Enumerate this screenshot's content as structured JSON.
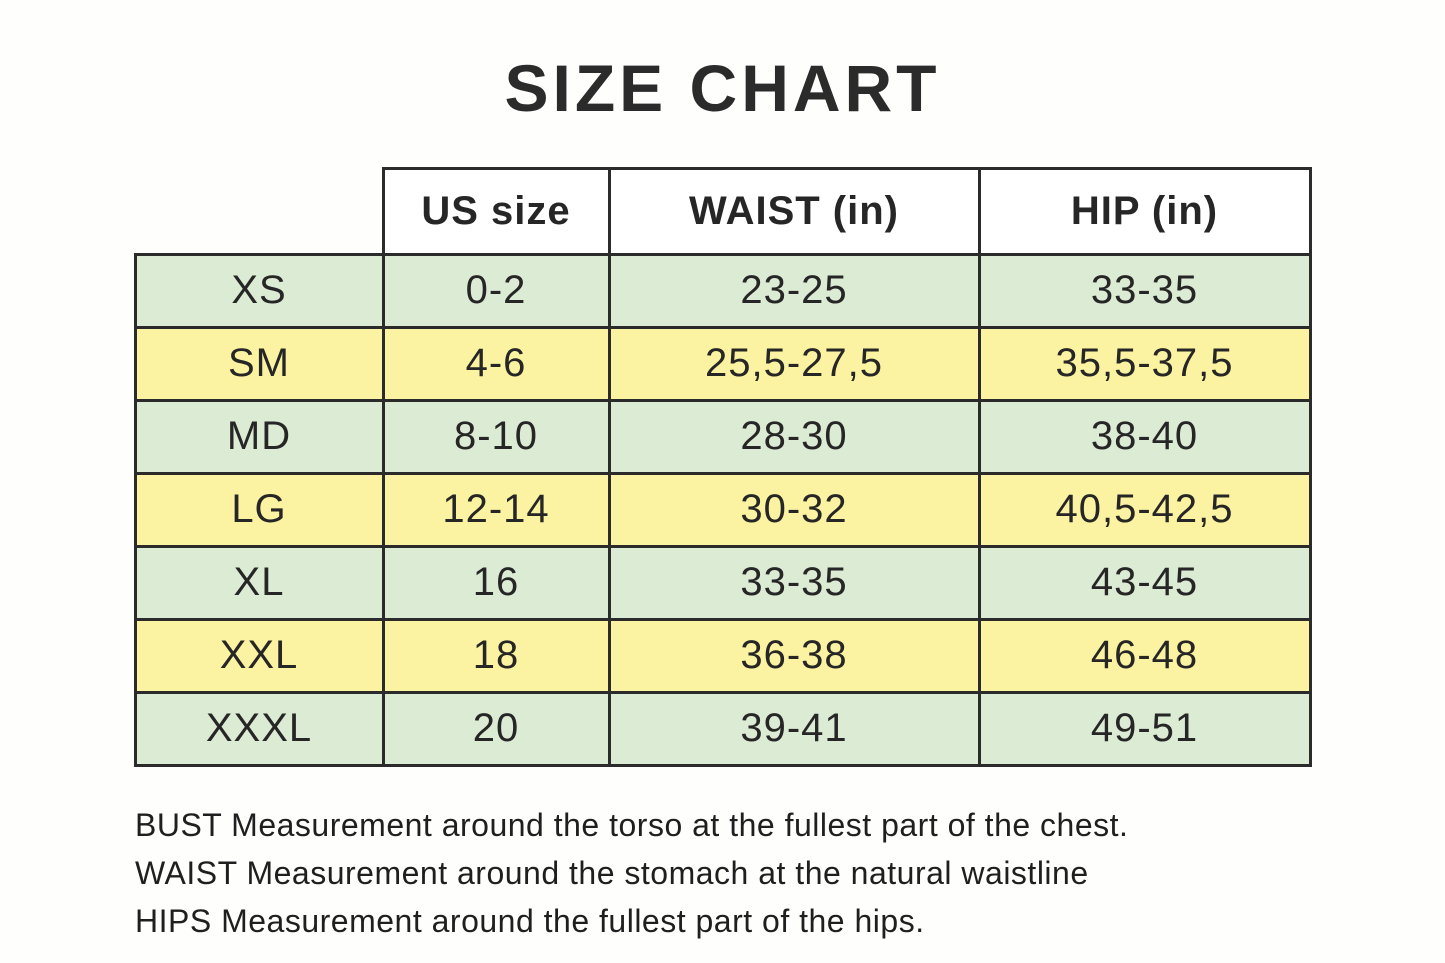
{
  "page": {
    "title": "SIZE CHART"
  },
  "colors": {
    "page_bg": "#fefefd",
    "row_green": "#dcebd3",
    "row_yellow": "#fbf3a1",
    "border": "#2b2b2b",
    "text": "#262626",
    "header_bg": "#ffffff"
  },
  "table": {
    "headers": [
      "US size",
      "WAIST (in)",
      "HIP (in)"
    ],
    "rows": [
      {
        "size": "XS",
        "us_size": "0-2",
        "waist": "23-25",
        "hip": "33-35",
        "shade": "green"
      },
      {
        "size": "SM",
        "us_size": "4-6",
        "waist": "25,5-27,5",
        "hip": "35,5-37,5",
        "shade": "yellow"
      },
      {
        "size": "MD",
        "us_size": "8-10",
        "waist": "28-30",
        "hip": "38-40",
        "shade": "green"
      },
      {
        "size": "LG",
        "us_size": "12-14",
        "waist": "30-32",
        "hip": "40,5-42,5",
        "shade": "yellow"
      },
      {
        "size": "XL",
        "us_size": "16",
        "waist": "33-35",
        "hip": "43-45",
        "shade": "green"
      },
      {
        "size": "XXL",
        "us_size": "18",
        "waist": "36-38",
        "hip": "46-48",
        "shade": "yellow"
      },
      {
        "size": "XXXL",
        "us_size": "20",
        "waist": "39-41",
        "hip": "49-51",
        "shade": "green"
      }
    ]
  },
  "footnotes": {
    "bust": "BUST Measurement around the torso at the fullest part of the chest.",
    "waist": "WAIST Measurement around the stomach at the natural waistline",
    "hips": "HIPS Measurement around the fullest part of the hips."
  },
  "chart_data": {
    "type": "table",
    "title": "SIZE CHART",
    "columns": [
      "",
      "US size",
      "WAIST (in)",
      "HIP (in)"
    ],
    "rows": [
      [
        "XS",
        "0-2",
        "23-25",
        "33-35"
      ],
      [
        "SM",
        "4-6",
        "25,5-27,5",
        "35,5-37,5"
      ],
      [
        "MD",
        "8-10",
        "28-30",
        "38-40"
      ],
      [
        "LG",
        "12-14",
        "30-32",
        "40,5-42,5"
      ],
      [
        "XL",
        "16",
        "33-35",
        "43-45"
      ],
      [
        "XXL",
        "18",
        "36-38",
        "46-48"
      ],
      [
        "XXXL",
        "20",
        "39-41",
        "49-51"
      ]
    ],
    "notes": [
      "BUST Measurement around the torso at the fullest part of the chest.",
      "WAIST Measurement around the stomach at the natural waistline",
      "HIPS Measurement around the fullest part of the hips."
    ],
    "row_colors_alternate": [
      "#dcebd3",
      "#fbf3a1"
    ]
  }
}
